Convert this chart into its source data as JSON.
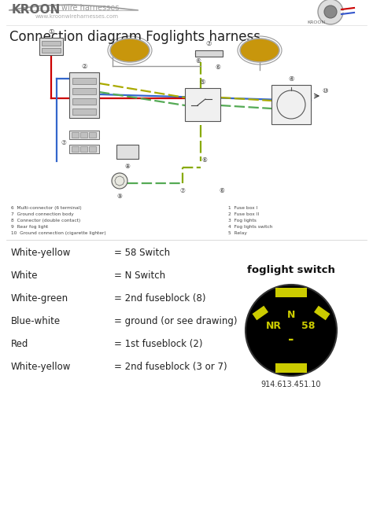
{
  "title": "Connection diagram Foglights harness.",
  "bg_color": "#ffffff",
  "legend_left": [
    [
      "White-yellow",
      "= 58 Switch"
    ],
    [
      "White",
      "= N Switch"
    ],
    [
      "White-green",
      "= 2nd fuseblock (8)"
    ],
    [
      "Blue-white",
      "= ground (or see drawing)"
    ],
    [
      "Red",
      "= 1st fuseblock (2)"
    ],
    [
      "White-yellow",
      "= 2nd fuseblock (3 or 7)"
    ]
  ],
  "foglight_switch_title": "foglight switch",
  "foglight_switch_number": "914.613.451.10",
  "switch_bg": "#000000",
  "switch_accent": "#cccc00",
  "diagram_legend_left": [
    "6  Multi-connector (6 terminal)",
    "7  Ground connection body",
    "8  Connector (double contact)",
    "9  Rear fog light",
    "10  Ground connection (cigarette lighter)"
  ],
  "diagram_legend_right": [
    "1  Fuse box I",
    "2  Fuse box II",
    "3  Fog lights",
    "4  Fog lights switch",
    "5  Relay"
  ]
}
